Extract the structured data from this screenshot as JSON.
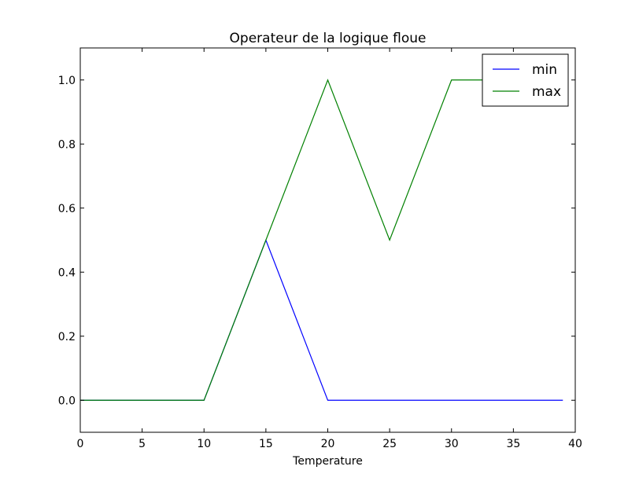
{
  "chart_data": {
    "type": "line",
    "title": "Operateur de la logique floue",
    "xlabel": "Temperature",
    "ylabel": "",
    "xlim": [
      0,
      40
    ],
    "ylim": [
      -0.1,
      1.1
    ],
    "xticks": [
      0,
      5,
      10,
      15,
      20,
      25,
      30,
      35,
      40
    ],
    "xtick_labels": [
      "0",
      "5",
      "10",
      "15",
      "20",
      "25",
      "30",
      "35",
      "40"
    ],
    "yticks": [
      0.0,
      0.2,
      0.4,
      0.6,
      0.8,
      1.0
    ],
    "ytick_labels": [
      "0.0",
      "0.2",
      "0.4",
      "0.6",
      "0.8",
      "1.0"
    ],
    "grid": false,
    "legend_position": "top-right",
    "series": [
      {
        "name": "min",
        "color": "#0000ff",
        "x": [
          0,
          10,
          15,
          20,
          25,
          30,
          35,
          39
        ],
        "y": [
          0,
          0,
          0.5,
          0,
          0,
          0,
          0,
          0
        ]
      },
      {
        "name": "max",
        "color": "#008000",
        "x": [
          0,
          10,
          15,
          20,
          25,
          30,
          35,
          39
        ],
        "y": [
          0,
          0,
          0.5,
          1.0,
          0.5,
          1.0,
          1.0,
          1.0
        ]
      }
    ]
  }
}
